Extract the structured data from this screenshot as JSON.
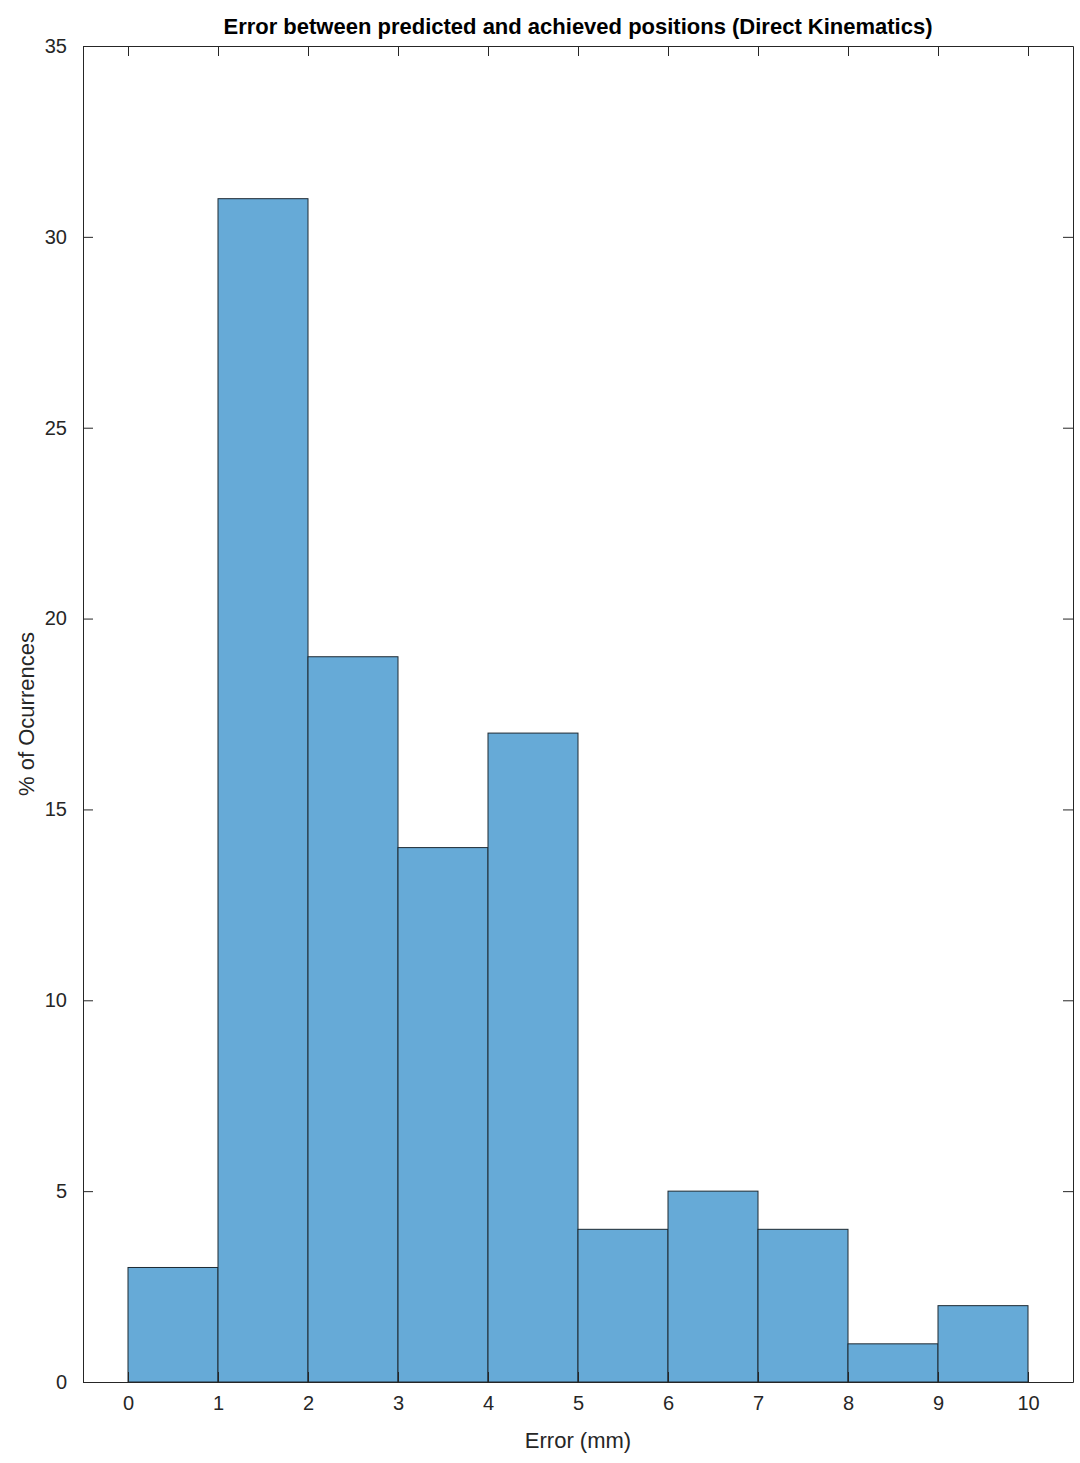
{
  "chart_data": {
    "type": "histogram",
    "title": "Error between predicted and achieved positions (Direct Kinematics)",
    "xlabel": "Error (mm)",
    "ylabel": "% of Ocurrences",
    "bins": [
      0,
      1,
      2,
      3,
      4,
      5,
      6,
      7,
      8,
      9,
      10
    ],
    "values": [
      3,
      31,
      19,
      14,
      17,
      4,
      5,
      4,
      1,
      2
    ],
    "color": "#66aad7",
    "xlim": [
      -0.5,
      10.5
    ],
    "ylim": [
      0,
      35
    ],
    "xticks": [
      0,
      1,
      2,
      3,
      4,
      5,
      6,
      7,
      8,
      9,
      10
    ],
    "yticks": [
      0,
      5,
      10,
      15,
      20,
      25,
      30,
      35
    ]
  }
}
